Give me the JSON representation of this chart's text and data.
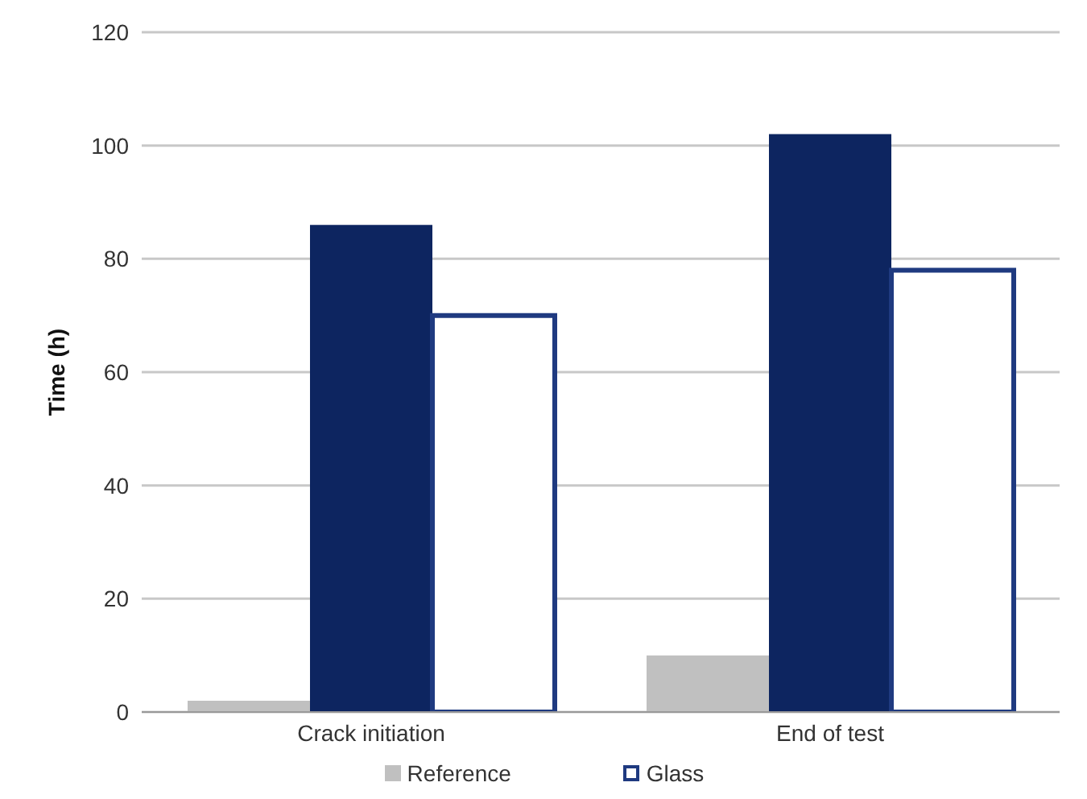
{
  "chart_data": {
    "type": "bar",
    "ylabel": "Time (h)",
    "categories": [
      "Crack initiation",
      "End of test"
    ],
    "series": [
      {
        "name": "Reference",
        "color": "#c0c0c0",
        "values": [
          2,
          10
        ]
      },
      {
        "color": "#0d2560",
        "values": [
          86,
          102
        ]
      },
      {
        "name": "Glass",
        "color": "#ffffff",
        "values": [
          70,
          78
        ]
      }
    ],
    "ylim": [
      0,
      120
    ],
    "yticks": [
      0,
      20,
      40,
      60,
      80,
      100,
      120
    ],
    "grid": "y",
    "legend": "bottom"
  }
}
